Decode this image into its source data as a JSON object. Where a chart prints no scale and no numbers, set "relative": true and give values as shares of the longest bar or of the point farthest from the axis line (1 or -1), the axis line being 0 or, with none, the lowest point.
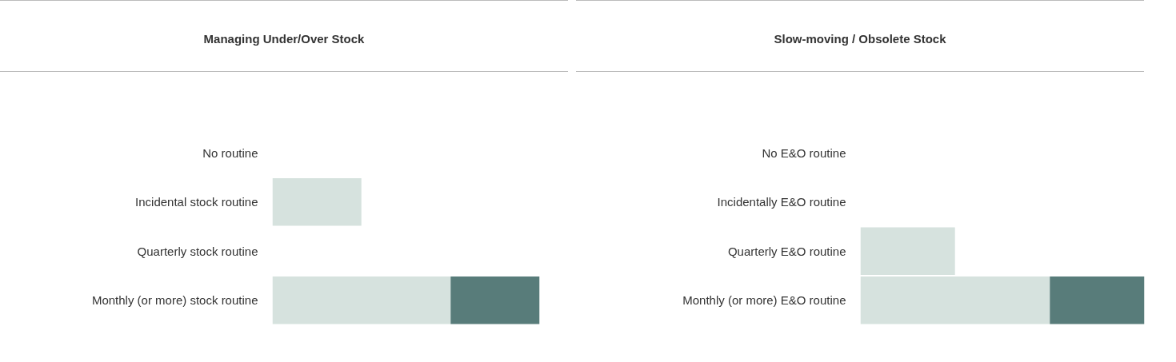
{
  "chart_data": [
    {
      "type": "bar",
      "orientation": "horizontal",
      "stacked": true,
      "relative": true,
      "title": "Managing Under/Over Stock",
      "categories": [
        "No routine",
        "Incidental stock routine",
        "Quarterly stock routine",
        "Monthly (or more) stock routine"
      ],
      "series": [
        {
          "color": "#d6e2de",
          "values": [
            null,
            0.333,
            null,
            0.667
          ]
        },
        {
          "color": "#587c7a",
          "values": [
            null,
            null,
            null,
            0.333
          ]
        }
      ]
    },
    {
      "type": "bar",
      "orientation": "horizontal",
      "stacked": true,
      "relative": true,
      "title": "Slow-moving / Obsolete Stock",
      "categories": [
        "No E&O routine",
        "Incidentally E&O routine",
        "Quarterly E&O routine",
        "Monthly (or more) E&O routine"
      ],
      "series": [
        {
          "color": "#d6e2de",
          "values": [
            null,
            null,
            0.333,
            0.667
          ]
        },
        {
          "color": "#587c7a",
          "values": [
            null,
            null,
            null,
            0.333
          ]
        }
      ]
    }
  ]
}
